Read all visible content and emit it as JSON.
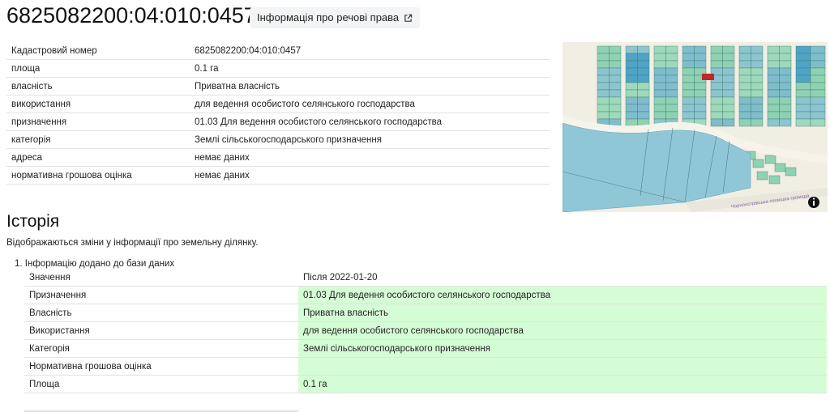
{
  "header": {
    "title": "6825082200:04:010:0457",
    "rights_button": "Інформація про речові права",
    "rights_icon": "external-link-icon"
  },
  "info": [
    {
      "label": "Кадастровий номер",
      "value": "6825082200:04:010:0457"
    },
    {
      "label": "площа",
      "value": "0.1 га"
    },
    {
      "label": "власність",
      "value": "Приватна власність"
    },
    {
      "label": "використання",
      "value": "для ведення особистого селянського господарства"
    },
    {
      "label": "призначення",
      "value": "01.03 Для ведення особистого селянського господарства"
    },
    {
      "label": "категорія",
      "value": "Землі сільськогосподарського призначення"
    },
    {
      "label": "адреса",
      "value": "немає даних"
    },
    {
      "label": "нормативна грошова оцінка",
      "value": "немає даних"
    }
  ],
  "map": {
    "label": "Чорноострівська селищна громада",
    "info_icon": "info-icon",
    "highlight_color": "#c0282a"
  },
  "history": {
    "title": "Історія",
    "description": "Відображаються зміни у інформації про земельну ділянку.",
    "entries": [
      {
        "title": "1. Інформацію додано до бази даних",
        "header": {
          "label": "Значення",
          "value": "Після 2022-01-20"
        },
        "rows": [
          {
            "label": "Призначення",
            "value": "01.03 Для ведення особистого селянського господарства"
          },
          {
            "label": "Власність",
            "value": "Приватна власність"
          },
          {
            "label": "Використання",
            "value": "для ведення особистого селянського господарства"
          },
          {
            "label": "Категорія",
            "value": "Землі сільськогосподарського призначення"
          },
          {
            "label": "Нормативна грошова оцінка",
            "value": ""
          },
          {
            "label": "Площа",
            "value": "0.1 га"
          }
        ]
      }
    ],
    "highlight_color": "#d5fdd5"
  }
}
